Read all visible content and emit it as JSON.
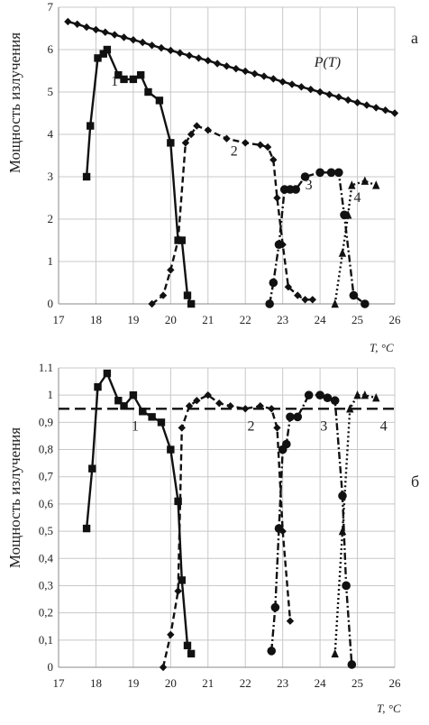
{
  "chart_data": [
    {
      "type": "line",
      "panel_label": "а",
      "ylabel": "Мощность излучения",
      "xlabel": "T, °C",
      "xlim": [
        17,
        26
      ],
      "ylim": [
        0,
        7
      ],
      "xticks": [
        "17",
        "18",
        "19",
        "20",
        "21",
        "22",
        "23",
        "24",
        "25",
        "26"
      ],
      "yticks": [
        "0",
        "1",
        "2",
        "3",
        "4",
        "5",
        "6",
        "7"
      ],
      "grid": true,
      "series": [
        {
          "label": "P(T)",
          "color": "#111111",
          "marker": "diamond",
          "dash": "solid",
          "x": [
            17.25,
            17.5,
            17.75,
            18.0,
            18.25,
            18.5,
            18.75,
            19.0,
            19.25,
            19.5,
            19.75,
            20.0,
            20.25,
            20.5,
            20.75,
            21.0,
            21.25,
            21.5,
            21.75,
            22.0,
            22.25,
            22.5,
            22.75,
            23.0,
            23.25,
            23.5,
            23.75,
            24.0,
            24.25,
            24.5,
            24.75,
            25.0,
            25.25,
            25.5,
            25.75,
            26.0
          ],
          "y": [
            6.66,
            6.6,
            6.53,
            6.47,
            6.41,
            6.35,
            6.29,
            6.23,
            6.17,
            6.1,
            6.04,
            5.98,
            5.92,
            5.86,
            5.8,
            5.74,
            5.67,
            5.61,
            5.55,
            5.49,
            5.43,
            5.37,
            5.31,
            5.24,
            5.18,
            5.12,
            5.06,
            5.0,
            4.94,
            4.88,
            4.81,
            4.75,
            4.69,
            4.63,
            4.57,
            4.5
          ]
        },
        {
          "label": "1",
          "color": "#111111",
          "marker": "square",
          "dash": "solid",
          "x": [
            17.75,
            17.85,
            18.05,
            18.2,
            18.3,
            18.6,
            18.75,
            19.0,
            19.2,
            19.4,
            19.7,
            20.0,
            20.2,
            20.3,
            20.45,
            20.55
          ],
          "y": [
            3.0,
            4.2,
            5.8,
            5.9,
            6.0,
            5.4,
            5.3,
            5.3,
            5.4,
            5.0,
            4.8,
            3.8,
            1.5,
            1.5,
            0.2,
            0.0
          ]
        },
        {
          "label": "2",
          "color": "#111111",
          "marker": "diamond",
          "dash": "dash",
          "x": [
            19.5,
            19.8,
            20.0,
            20.2,
            20.4,
            20.55,
            20.7,
            21.0,
            21.5,
            22.0,
            22.4,
            22.6,
            22.75,
            22.85,
            23.0,
            23.15,
            23.4,
            23.6,
            23.8
          ],
          "y": [
            0.0,
            0.2,
            0.8,
            1.5,
            3.8,
            4.0,
            4.2,
            4.1,
            3.9,
            3.8,
            3.75,
            3.7,
            3.4,
            2.5,
            1.4,
            0.4,
            0.2,
            0.1,
            0.1
          ]
        },
        {
          "label": "3",
          "color": "#111111",
          "marker": "circle",
          "dash": "dashdot",
          "x": [
            22.65,
            22.75,
            22.9,
            23.05,
            23.2,
            23.35,
            23.6,
            24.0,
            24.3,
            24.5,
            24.65,
            24.9,
            25.2
          ],
          "y": [
            0.0,
            0.5,
            1.4,
            2.7,
            2.7,
            2.7,
            3.0,
            3.1,
            3.1,
            3.1,
            2.1,
            0.2,
            0.0
          ]
        },
        {
          "label": "4",
          "color": "#111111",
          "marker": "triangle",
          "dash": "dot",
          "x": [
            24.4,
            24.6,
            24.75,
            24.85,
            25.2,
            25.5
          ],
          "y": [
            0.0,
            1.2,
            2.1,
            2.8,
            2.9,
            2.8
          ]
        }
      ]
    },
    {
      "type": "line",
      "panel_label": "б",
      "ylabel": "Мощность излучения",
      "xlabel": "T, °C",
      "xlim": [
        17,
        26
      ],
      "ylim": [
        0,
        1.1
      ],
      "xticks": [
        "17",
        "18",
        "19",
        "20",
        "21",
        "22",
        "23",
        "24",
        "25",
        "26"
      ],
      "yticks": [
        "0",
        "0,1",
        "0,2",
        "0,3",
        "0,4",
        "0,5",
        "0,6",
        "0,7",
        "0,8",
        "0,9",
        "1",
        "1.1"
      ],
      "grid": true,
      "reference_line": {
        "y": 0.95,
        "dash": "longdash"
      },
      "series": [
        {
          "label": "1",
          "color": "#111111",
          "marker": "square",
          "dash": "solid",
          "x": [
            17.75,
            17.9,
            18.05,
            18.3,
            18.6,
            18.75,
            19.0,
            19.25,
            19.5,
            19.75,
            20.0,
            20.2,
            20.3,
            20.45,
            20.55
          ],
          "y": [
            0.51,
            0.73,
            1.03,
            1.08,
            0.98,
            0.96,
            1.0,
            0.94,
            0.92,
            0.9,
            0.8,
            0.61,
            0.32,
            0.08,
            0.05
          ]
        },
        {
          "label": "2",
          "color": "#111111",
          "marker": "diamond",
          "dash": "dash",
          "x": [
            19.8,
            20.0,
            20.2,
            20.3,
            20.5,
            20.7,
            21.0,
            21.3,
            21.6,
            22.0,
            22.4,
            22.7,
            22.85,
            23.0,
            23.2
          ],
          "y": [
            0.0,
            0.12,
            0.28,
            0.88,
            0.96,
            0.98,
            1.0,
            0.97,
            0.96,
            0.95,
            0.96,
            0.95,
            0.88,
            0.5,
            0.17
          ]
        },
        {
          "label": "3",
          "color": "#111111",
          "marker": "circle",
          "dash": "dashdot",
          "x": [
            22.7,
            22.8,
            22.9,
            23.0,
            23.1,
            23.2,
            23.4,
            23.7,
            24.0,
            24.2,
            24.4,
            24.6,
            24.7,
            24.85
          ],
          "y": [
            0.06,
            0.22,
            0.51,
            0.8,
            0.82,
            0.92,
            0.92,
            1.0,
            1.0,
            0.99,
            0.98,
            0.63,
            0.3,
            0.01
          ]
        },
        {
          "label": "4",
          "color": "#111111",
          "marker": "triangle",
          "dash": "dot",
          "x": [
            24.4,
            24.6,
            24.8,
            25.0,
            25.2,
            25.5
          ],
          "y": [
            0.05,
            0.5,
            0.95,
            1.0,
            1.0,
            0.99
          ]
        }
      ]
    }
  ],
  "series_label_positions": [
    [
      {
        "x": 24.2,
        "y": 5.6,
        "text": "P(T)"
      },
      {
        "x": 18.5,
        "y": 5.15,
        "text": "1"
      },
      {
        "x": 21.7,
        "y": 3.5,
        "text": "2"
      },
      {
        "x": 23.7,
        "y": 2.7,
        "text": "3"
      },
      {
        "x": 25.0,
        "y": 2.4,
        "text": "4"
      }
    ],
    [
      {
        "x": 19.05,
        "y": 0.87,
        "text": "1"
      },
      {
        "x": 22.15,
        "y": 0.87,
        "text": "2"
      },
      {
        "x": 24.1,
        "y": 0.87,
        "text": "3"
      },
      {
        "x": 25.7,
        "y": 0.87,
        "text": "4"
      }
    ]
  ]
}
